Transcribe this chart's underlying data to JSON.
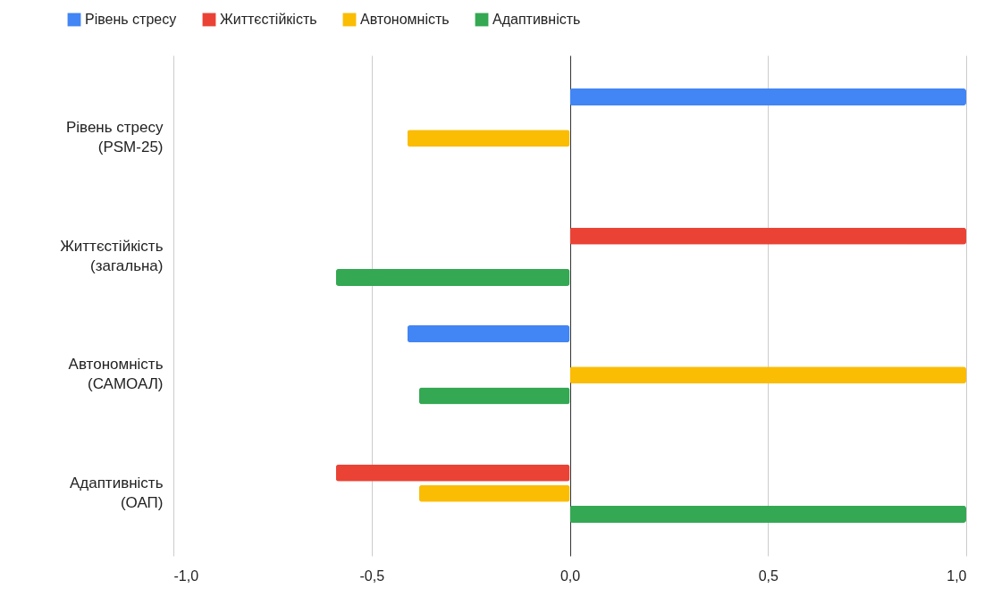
{
  "chart_data": {
    "type": "bar",
    "orientation": "horizontal",
    "categories": [
      "Рівень стресу (PSM-25)",
      "Життєстійкість (загальна)",
      "Автономність (САМОАЛ)",
      "Адаптивність (ОАП)"
    ],
    "series": [
      {
        "name": "Рівень стресу",
        "color": "#4285f4",
        "values": [
          1.0,
          null,
          -0.41,
          null
        ]
      },
      {
        "name": "Життєстійкість",
        "color": "#ea4335",
        "values": [
          null,
          1.0,
          null,
          -0.59
        ]
      },
      {
        "name": "Автономність",
        "color": "#fbbc04",
        "values": [
          -0.41,
          null,
          1.0,
          -0.38
        ]
      },
      {
        "name": "Адаптивність",
        "color": "#34a853",
        "values": [
          null,
          -0.59,
          -0.38,
          1.0
        ]
      }
    ],
    "xlim": [
      -1,
      1
    ],
    "xticks": [
      {
        "value": -1,
        "label": "-1,0"
      },
      {
        "value": -0.5,
        "label": "-0,5"
      },
      {
        "value": 0,
        "label": "0,0"
      },
      {
        "value": 0.5,
        "label": "0,5"
      },
      {
        "value": 1,
        "label": "1,0"
      }
    ],
    "grid": "x",
    "legend": "top"
  }
}
